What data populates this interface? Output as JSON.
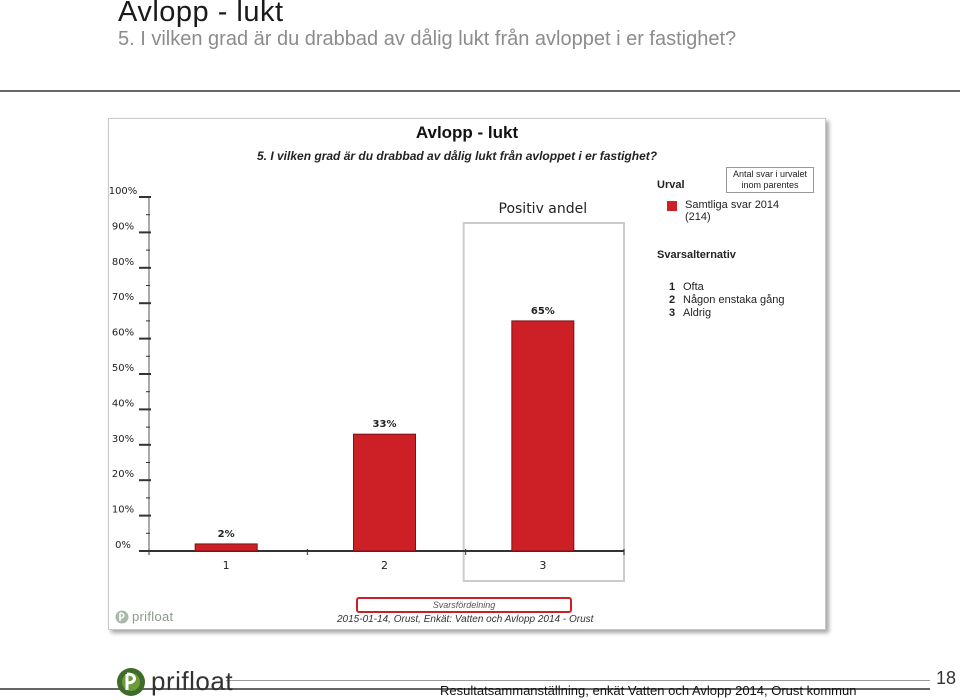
{
  "slide": {
    "title": "Avlopp - lukt",
    "subtitle": "5. I vilken grad är du drabbad av dålig lukt från avloppet i er fastighet?",
    "footer_caption": "Resultatsammanställning, enkät Vatten och Avlopp 2014, Orust kommun",
    "page_number": "18",
    "logo_text": "prifloat"
  },
  "chart_panel": {
    "title": "Avlopp - lukt",
    "question": "5. I vilken grad är du drabbad av dålig lukt från avloppet i er fastighet?",
    "positive_share_label": "Positiv andel",
    "legend_note": "Antal svar i urvalet inom parentes",
    "urval_title": "Urval",
    "series_label_line1": "Samtliga svar 2014",
    "series_label_line2": "(214)",
    "alternatives_title": "Svarsalternativ",
    "alternatives": [
      {
        "num": "1",
        "label": "Ofta"
      },
      {
        "num": "2",
        "label": "Någon enstaka gång"
      },
      {
        "num": "3",
        "label": "Aldrig"
      }
    ],
    "distribution_label": "Svarsfördelning",
    "meta_line": "2015-01-14, Orust, Enkät: Vatten och Avlopp 2014 - Orust",
    "logo_text": "prifloat"
  },
  "colors": {
    "bar": "#cc2026",
    "highlight_box": "#cccccc",
    "accent": "#cc2026"
  },
  "chart_data": {
    "type": "bar",
    "categories": [
      "1",
      "2",
      "3"
    ],
    "values": [
      2,
      33,
      65
    ],
    "value_labels": [
      "2%",
      "33%",
      "65%"
    ],
    "y_ticks": [
      "0%",
      "10%",
      "20%",
      "30%",
      "40%",
      "50%",
      "60%",
      "70%",
      "80%",
      "90%",
      "100%"
    ],
    "ylim": [
      0,
      100
    ],
    "highlighted_category": "3",
    "grid": false
  }
}
